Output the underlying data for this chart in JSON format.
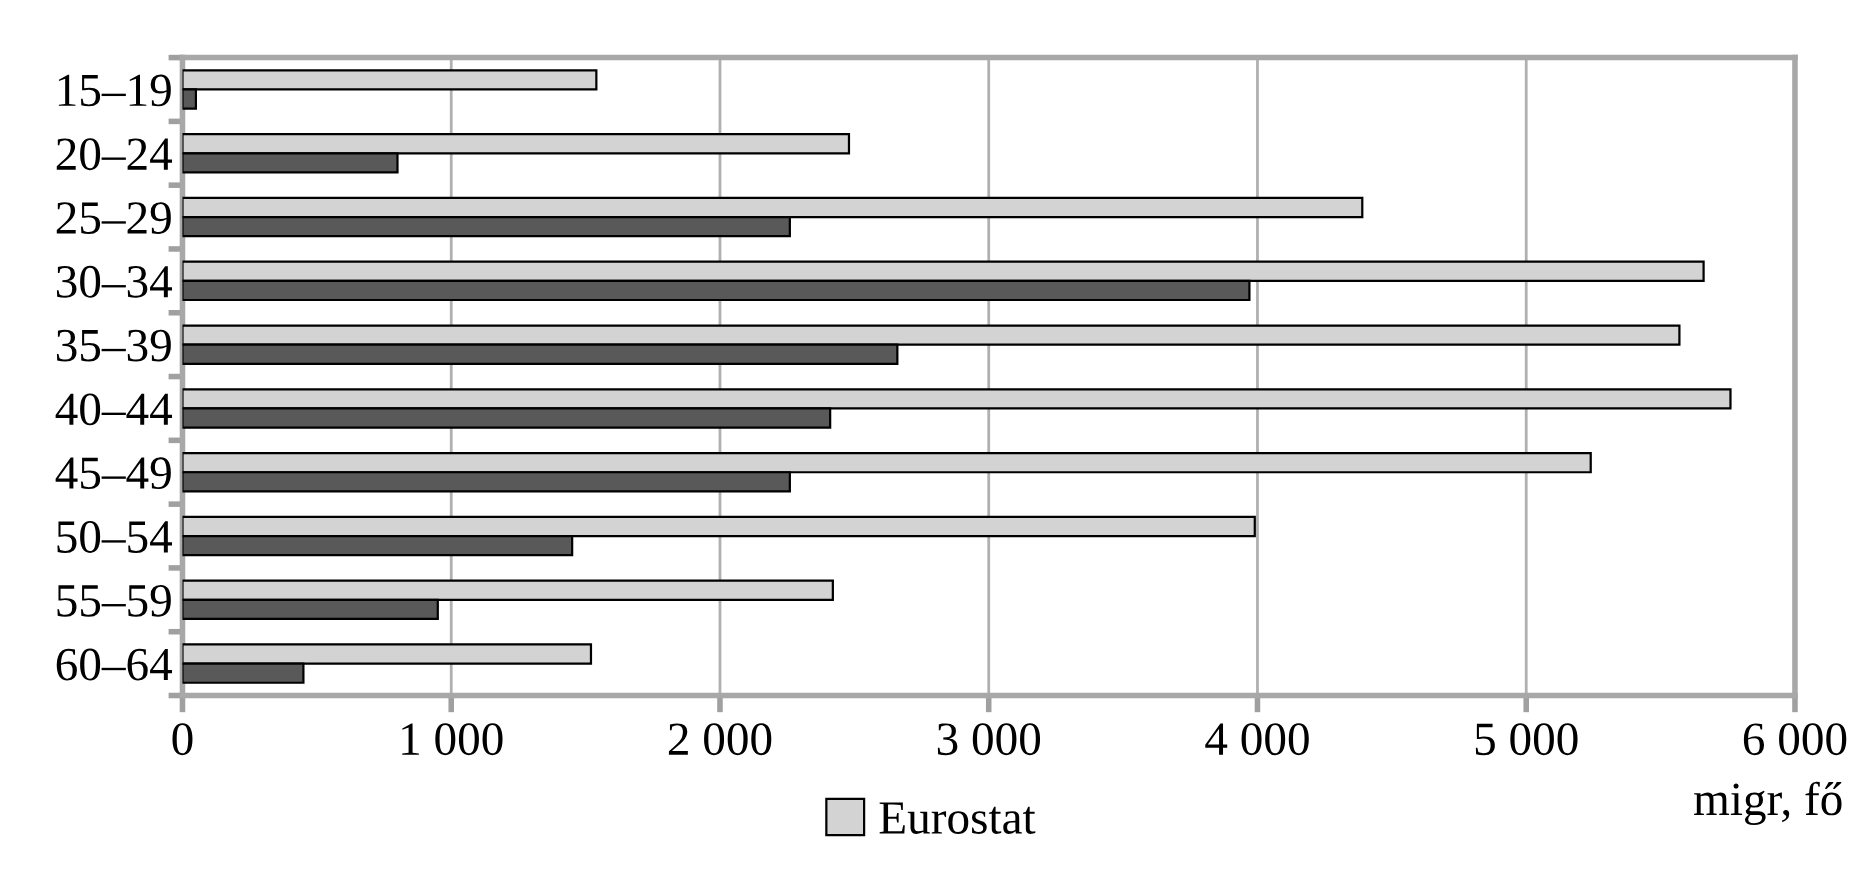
{
  "chart_data": {
    "type": "bar",
    "orientation": "horizontal",
    "xlabel": "migr, fő",
    "categories": [
      "15–19",
      "20–24",
      "25–29",
      "30–34",
      "35–39",
      "40–44",
      "45–49",
      "50–54",
      "55–59",
      "60–64"
    ],
    "series": [
      {
        "name": "Eurostat",
        "color": "#d3d3d3",
        "values": [
          1540,
          2480,
          4390,
          5660,
          5570,
          5760,
          5240,
          3990,
          2420,
          1520
        ]
      },
      {
        "color": "#595959",
        "values": [
          50,
          800,
          2260,
          3970,
          2660,
          2410,
          2260,
          1450,
          950,
          450
        ]
      }
    ],
    "xlim": [
      0,
      6000
    ],
    "xticks": [
      0,
      {
        "value": 1000,
        "label": "1 000"
      },
      {
        "value": 2000,
        "label": "2 000"
      },
      {
        "value": 3000,
        "label": "3 000"
      },
      {
        "value": 4000,
        "label": "4 000"
      },
      {
        "value": 5000,
        "label": "5 000"
      },
      {
        "value": 6000,
        "label": "6 000"
      }
    ],
    "grid": "x",
    "legend": "bottom"
  }
}
